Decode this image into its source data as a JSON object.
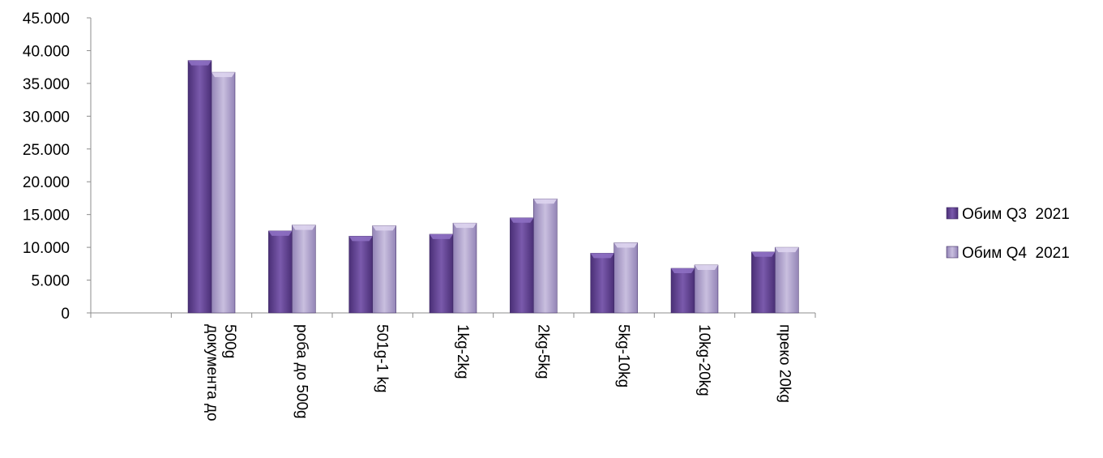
{
  "chart_data": {
    "type": "bar",
    "categories": [
      "",
      "документа до 500g",
      "роба до 500g",
      "501g-1 kg",
      "1kg-2kg",
      "2kg-5kg",
      "5kg-10kg",
      "10kg-20kg",
      "преко 20kg"
    ],
    "category_lines": [
      [],
      [
        "документа до",
        "500g"
      ],
      [
        "роба до 500g"
      ],
      [
        "501g-1 kg"
      ],
      [
        "1kg-2kg"
      ],
      [
        "2kg-5kg"
      ],
      [
        "5kg-10kg"
      ],
      [
        "10kg-20kg"
      ],
      [
        "преко 20kg"
      ]
    ],
    "series": [
      {
        "name": "Обим Q3  2021",
        "values": [
          null,
          38500,
          12500,
          11700,
          12000,
          14500,
          9100,
          6800,
          9300
        ],
        "color": "#5e3f8f"
      },
      {
        "name": "Обим Q4  2021",
        "values": [
          null,
          36700,
          13400,
          13300,
          13700,
          17400,
          10700,
          7300,
          10000
        ],
        "color": "#a898c6"
      }
    ],
    "y_ticks": [
      "0",
      "5.000",
      "10.000",
      "15.000",
      "20.000",
      "25.000",
      "30.000",
      "35.000",
      "40.000",
      "45.000"
    ],
    "ylim": [
      0,
      45000
    ],
    "legend_position": "right",
    "grid": false,
    "title": "",
    "xlabel": "",
    "ylabel": ""
  }
}
